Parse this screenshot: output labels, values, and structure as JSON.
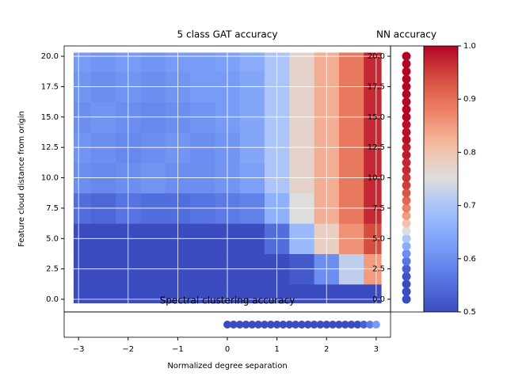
{
  "chart_data": [
    {
      "type": "heatmap",
      "title": "5 class GAT accuracy",
      "x_label": "Normalized degree separation",
      "y_label": "Feature cloud distance from origin",
      "x": [
        -3,
        -2.5,
        -2,
        -1.5,
        -1,
        -0.5,
        0,
        0.5,
        1,
        1.5,
        2,
        2.5,
        3
      ],
      "y": [
        0,
        2.5,
        5,
        7.5,
        10,
        12.5,
        15,
        17.5,
        20
      ],
      "values": [
        [
          0.5,
          0.5,
          0.5,
          0.5,
          0.5,
          0.5,
          0.5,
          0.5,
          0.5,
          0.5,
          0.5,
          0.5,
          0.5
        ],
        [
          0.5,
          0.5,
          0.5,
          0.5,
          0.5,
          0.5,
          0.5,
          0.5,
          0.5,
          0.52,
          0.6,
          0.72,
          0.85
        ],
        [
          0.5,
          0.5,
          0.5,
          0.5,
          0.5,
          0.5,
          0.5,
          0.5,
          0.55,
          0.68,
          0.78,
          0.86,
          0.94
        ],
        [
          0.55,
          0.54,
          0.56,
          0.55,
          0.55,
          0.56,
          0.57,
          0.58,
          0.66,
          0.75,
          0.83,
          0.89,
          0.97
        ],
        [
          0.6,
          0.59,
          0.6,
          0.61,
          0.6,
          0.6,
          0.61,
          0.63,
          0.7,
          0.77,
          0.83,
          0.89,
          0.97
        ],
        [
          0.61,
          0.6,
          0.59,
          0.6,
          0.61,
          0.6,
          0.61,
          0.64,
          0.7,
          0.77,
          0.83,
          0.89,
          0.97
        ],
        [
          0.6,
          0.61,
          0.6,
          0.59,
          0.6,
          0.61,
          0.62,
          0.64,
          0.7,
          0.77,
          0.83,
          0.89,
          0.97
        ],
        [
          0.61,
          0.6,
          0.61,
          0.6,
          0.61,
          0.62,
          0.62,
          0.64,
          0.7,
          0.77,
          0.83,
          0.89,
          0.97
        ],
        [
          0.62,
          0.61,
          0.62,
          0.61,
          0.62,
          0.62,
          0.63,
          0.65,
          0.7,
          0.77,
          0.83,
          0.89,
          0.97
        ]
      ],
      "xlim": [
        -3.29,
        3.29
      ],
      "ylim": [
        -1.04,
        20.85
      ],
      "xticks": [
        {
          "value": -3,
          "label": "−3"
        },
        {
          "value": -2,
          "label": "−2"
        },
        {
          "value": -1,
          "label": "−1"
        },
        0,
        1,
        2,
        3
      ],
      "yticks": [
        {
          "value": 0,
          "label": "0.0"
        },
        2.5,
        {
          "value": 5,
          "label": "5.0"
        },
        7.5,
        {
          "value": 10,
          "label": "10.0"
        },
        12.5,
        {
          "value": 15,
          "label": "15.0"
        },
        17.5,
        {
          "value": 20,
          "label": "20.0"
        }
      ],
      "grid": true,
      "colormap": "coolwarm",
      "colorbar": {
        "lim": [
          0.5,
          1
        ],
        "ticks": [
          0.5,
          0.6,
          0.7,
          0.8,
          0.9,
          {
            "value": 1,
            "label": "1.0"
          }
        ]
      }
    },
    {
      "type": "vertical-strip",
      "title": "NN accuracy",
      "y": [
        0,
        0.625,
        1.25,
        1.875,
        2.5,
        3.125,
        3.75,
        4.375,
        5,
        5.625,
        6.25,
        6.875,
        7.5,
        8.125,
        8.75,
        9.375,
        10,
        10.625,
        11.25,
        11.875,
        12.5,
        13.125,
        13.75,
        14.375,
        15,
        15.625,
        16.25,
        16.875,
        17.5,
        18.125,
        18.75,
        19.375,
        20
      ],
      "values": [
        0.5,
        0.5,
        0.5,
        0.51,
        0.53,
        0.56,
        0.6,
        0.65,
        0.7,
        0.75,
        0.8,
        0.85,
        0.88,
        0.91,
        0.93,
        0.95,
        0.96,
        0.97,
        0.97,
        0.98,
        0.98,
        0.99,
        0.99,
        0.99,
        1,
        1,
        1,
        1,
        1,
        1,
        1,
        1,
        1
      ]
    },
    {
      "type": "horizontal-strip",
      "title": "Spectral clustering accuracy",
      "x": [
        0,
        0.125,
        0.25,
        0.375,
        0.5,
        0.625,
        0.75,
        0.875,
        1,
        1.125,
        1.25,
        1.375,
        1.5,
        1.625,
        1.75,
        1.875,
        2,
        2.125,
        2.25,
        2.375,
        2.5,
        2.625,
        2.75,
        2.875,
        3
      ],
      "values": [
        0.5,
        0.5,
        0.5,
        0.5,
        0.5,
        0.5,
        0.5,
        0.5,
        0.5,
        0.5,
        0.5,
        0.5,
        0.5,
        0.5,
        0.5,
        0.5,
        0.5,
        0.5,
        0.5,
        0.5,
        0.5,
        0.5,
        0.53,
        0.57,
        0.62
      ]
    }
  ]
}
